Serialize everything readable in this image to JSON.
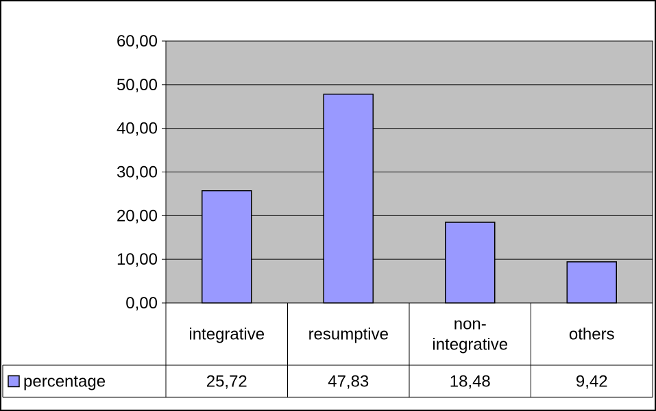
{
  "chart_data": {
    "type": "bar",
    "categories": [
      "integrative",
      "resumptive",
      "non-integrative",
      "others"
    ],
    "category_lines": [
      [
        "integrative"
      ],
      [
        "resumptive"
      ],
      [
        "non-",
        "integrative"
      ],
      [
        "others"
      ]
    ],
    "series": [
      {
        "name": "percentage",
        "values": [
          25.72,
          47.83,
          18.48,
          9.42
        ]
      }
    ],
    "data_table_values": [
      "25,72",
      "47,83",
      "18,48",
      "9,42"
    ],
    "yticks": [
      "0,00",
      "10,00",
      "20,00",
      "30,00",
      "40,00",
      "50,00",
      "60,00"
    ],
    "ylim": [
      0,
      60
    ],
    "grid": true,
    "legend": "data-table-left",
    "colors": {
      "bar_fill": "#9999ff",
      "plot_background": "#c0c0c0",
      "lines": "#000000"
    }
  }
}
